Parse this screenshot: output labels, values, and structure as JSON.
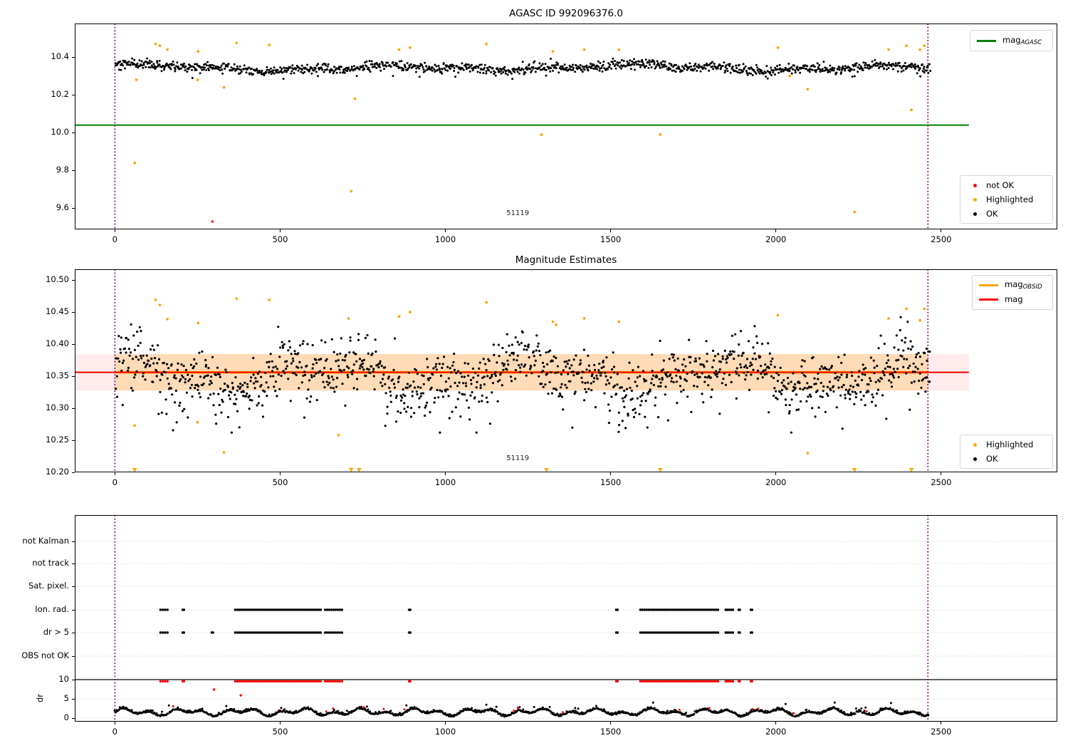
{
  "colors": {
    "background": "#ffffff",
    "ok": "#000000",
    "highlighted": "#ffa500",
    "not_ok": "#ff0000",
    "mag_agasc_line": "#008000",
    "mag_line": "#ff0000",
    "mag_obsid_line": "#ffa500",
    "obsid_vline": "#800080",
    "grid": "#c9c9c9",
    "band_mag": "rgba(255,0,0,0.08)",
    "band_obsid": "rgba(255,165,0,0.22)"
  },
  "chart_data": [
    {
      "id": "agasc_mag",
      "type": "scatter",
      "title": "AGASC ID 992096376.0",
      "xlim": [
        -121.4,
        2851.5
      ],
      "ylim": [
        9.488,
        10.578
      ],
      "xticks": {
        "values": [
          0,
          500,
          1000,
          1500,
          2000,
          2500
        ],
        "labels": [
          "0",
          "500",
          "1000",
          "1500",
          "2000",
          "2500"
        ]
      },
      "yticks": {
        "values": [
          10.4,
          10.2,
          10.0,
          9.8,
          9.6
        ],
        "labels": [
          "10.4",
          "10.2",
          "10.0",
          "9.8",
          "9.6"
        ]
      },
      "mag_agasc": 10.04,
      "hline_x_range": [
        -121.4,
        2584
      ],
      "obsid_vlines": [
        0,
        2460
      ],
      "annotation": {
        "text": "51119",
        "x": 1219,
        "y": 9.572
      },
      "legend_line": {
        "label_main": "mag",
        "label_sub": "AGASC"
      },
      "legend_markers": [
        {
          "color_key": "not_ok",
          "label": "not OK"
        },
        {
          "color_key": "highlighted",
          "label": "Highlighted"
        },
        {
          "color_key": "ok",
          "label": "OK"
        }
      ],
      "series": {
        "ok": {
          "label": "OK",
          "n": 1250,
          "x_range": [
            2,
            2466
          ],
          "base": 10.344,
          "waves": [
            {
              "amp": 0.012,
              "period": 120,
              "phase": 0.8
            },
            {
              "amp": 0.008,
              "period": 40,
              "phase": 0.0
            },
            {
              "amp": 0.005,
              "period": 260,
              "phase": 2.0
            }
          ],
          "sigma": 0.013,
          "p_drop": 0.02,
          "drop": 0.035,
          "clip": [
            10.285,
            10.45
          ],
          "seed": 42
        },
        "highlighted": {
          "label": "Highlighted",
          "points": [
            [
              60,
              9.84
            ],
            [
              65,
              10.28
            ],
            [
              123,
              10.47
            ],
            [
              136,
              10.46
            ],
            [
              159,
              10.44
            ],
            [
              250,
              10.28
            ],
            [
              252,
              10.43
            ],
            [
              330,
              10.24
            ],
            [
              368,
              10.475
            ],
            [
              467,
              10.465
            ],
            [
              715,
              9.69
            ],
            [
              726,
              10.18
            ],
            [
              860,
              10.44
            ],
            [
              893,
              10.45
            ],
            [
              1124,
              10.47
            ],
            [
              1290,
              9.99
            ],
            [
              1325,
              10.43
            ],
            [
              1420,
              10.44
            ],
            [
              1525,
              10.44
            ],
            [
              1650,
              9.99
            ],
            [
              2006,
              10.45
            ],
            [
              2042,
              10.3
            ],
            [
              2096,
              10.23
            ],
            [
              2238,
              9.58
            ],
            [
              2341,
              10.44
            ],
            [
              2395,
              10.46
            ],
            [
              2410,
              10.12
            ],
            [
              2436,
              10.44
            ],
            [
              2449,
              10.46
            ]
          ]
        },
        "not_ok": {
          "label": "not OK",
          "points": [
            [
              295,
              9.53
            ]
          ]
        }
      }
    },
    {
      "id": "mag_estimates",
      "type": "scatter",
      "title": "Magnitude Estimates",
      "xlim": [
        -121.4,
        2851.5
      ],
      "ylim": [
        10.2,
        10.5167
      ],
      "xticks": {
        "values": [
          0,
          500,
          1000,
          1500,
          2000,
          2500
        ],
        "labels": [
          "0",
          "500",
          "1000",
          "1500",
          "2000",
          "2500"
        ]
      },
      "yticks": {
        "values": [
          10.5,
          10.45,
          10.4,
          10.35,
          10.3,
          10.25,
          10.2
        ],
        "labels": [
          "10.50",
          "10.45",
          "10.40",
          "10.35",
          "10.30",
          "10.25",
          "10.20"
        ]
      },
      "mag": 10.356,
      "band": {
        "center": 10.356,
        "half_width": 0.0285,
        "x_range": [
          -121.4,
          2584
        ]
      },
      "obsid_band": {
        "center": 10.356,
        "half_width": 0.0285,
        "x_range": [
          0,
          2460
        ]
      },
      "hline_x_range": [
        -121.4,
        2584
      ],
      "obsid_vlines": [
        0,
        2460
      ],
      "annotation": {
        "text": "51119",
        "x": 1219,
        "y": 10.221
      },
      "legend_lines": [
        {
          "color_key": "mag_obsid_line",
          "label_main": "mag",
          "label_sub": "OBSID"
        },
        {
          "color_key": "mag_line",
          "label_main": "mag",
          "label_sub": ""
        }
      ],
      "legend_markers": [
        {
          "color_key": "highlighted",
          "label": "Highlighted"
        },
        {
          "color_key": "ok",
          "label": "OK"
        }
      ],
      "series": {
        "ok": {
          "label": "OK",
          "n": 1300,
          "x_range": [
            2,
            2466
          ],
          "base": 10.351,
          "waves": [
            {
              "amp": 0.02,
              "period": 95,
              "phase": 1.0
            },
            {
              "amp": 0.013,
              "period": 37,
              "phase": 0.0
            }
          ],
          "sigma": 0.021,
          "p_drop": 0.06,
          "drop": 0.045,
          "clip": [
            10.262,
            10.458
          ],
          "seed": 123
        },
        "highlighted": {
          "label": "Highlighted",
          "points": [
            [
              60,
              10.273
            ],
            [
              123,
              10.469
            ],
            [
              136,
              10.461
            ],
            [
              159,
              10.439
            ],
            [
              250,
              10.278
            ],
            [
              252,
              10.433
            ],
            [
              330,
              10.231
            ],
            [
              368,
              10.471
            ],
            [
              467,
              10.469
            ],
            [
              677,
              10.258
            ],
            [
              707,
              10.44
            ],
            [
              860,
              10.443
            ],
            [
              893,
              10.45
            ],
            [
              1124,
              10.465
            ],
            [
              1325,
              10.435
            ],
            [
              1335,
              10.43
            ],
            [
              1420,
              10.44
            ],
            [
              1525,
              10.435
            ],
            [
              2006,
              10.445
            ],
            [
              2096,
              10.23
            ],
            [
              2341,
              10.44
            ],
            [
              2395,
              10.455
            ],
            [
              2436,
              10.437
            ],
            [
              2449,
              10.455
            ]
          ]
        },
        "clipped_low_x": [
          60,
          715,
          739,
          1306,
          1650,
          2238,
          2410
        ]
      }
    },
    {
      "id": "flags_dr",
      "type": "scatter",
      "title": "",
      "xlim": [
        -121.4,
        2851.5
      ],
      "xticks": {
        "values": [
          0,
          500,
          1000,
          1500,
          2000,
          2500
        ],
        "labels": [
          "0",
          "500",
          "1000",
          "1500",
          "2000",
          "2500"
        ]
      },
      "rows": [
        "not Kalman",
        "not track",
        "Sat. pixel.",
        "Ion. rad.",
        "OBS not OK"
      ],
      "row_dr5": "dr > 5",
      "dr_axis": {
        "label": "dr",
        "ticks": {
          "values": [
            10,
            5,
            0
          ],
          "labels": [
            "10",
            "5",
            "0"
          ]
        },
        "hline": 10
      },
      "obsid_vlines": [
        0,
        2460
      ],
      "flag_intervals": [
        [
          138,
          159
        ],
        [
          205,
          209
        ],
        [
          364,
          623
        ],
        [
          636,
          687
        ],
        [
          890,
          894
        ],
        [
          1517,
          1521
        ],
        [
          1590,
          1825
        ],
        [
          1848,
          1870
        ],
        [
          1887,
          1891
        ],
        [
          1924,
          1928
        ]
      ],
      "dr5_extra_intervals": [
        [
          293,
          297
        ]
      ],
      "clip_dr10_intervals": [
        [
          138,
          159
        ],
        [
          205,
          209
        ],
        [
          364,
          623
        ],
        [
          636,
          687
        ],
        [
          890,
          894
        ],
        [
          1517,
          1521
        ],
        [
          1590,
          1825
        ],
        [
          1848,
          1870
        ],
        [
          1887,
          1891
        ],
        [
          1924,
          1928
        ]
      ],
      "red_outliers": [
        [
          300,
          7.4
        ],
        [
          381,
          5.9
        ]
      ],
      "dr_series": {
        "n": 1300,
        "x_range": [
          0,
          2462
        ],
        "base": 1.35,
        "amp": 1.05,
        "p1": 17.5,
        "p2": 46,
        "phase2": 1.2,
        "sigma": 0.28,
        "clip": [
          0.12,
          5.0
        ],
        "p_spike": 0.012,
        "spike": 1.2,
        "p_red": 0.015,
        "seed": 7
      }
    }
  ]
}
